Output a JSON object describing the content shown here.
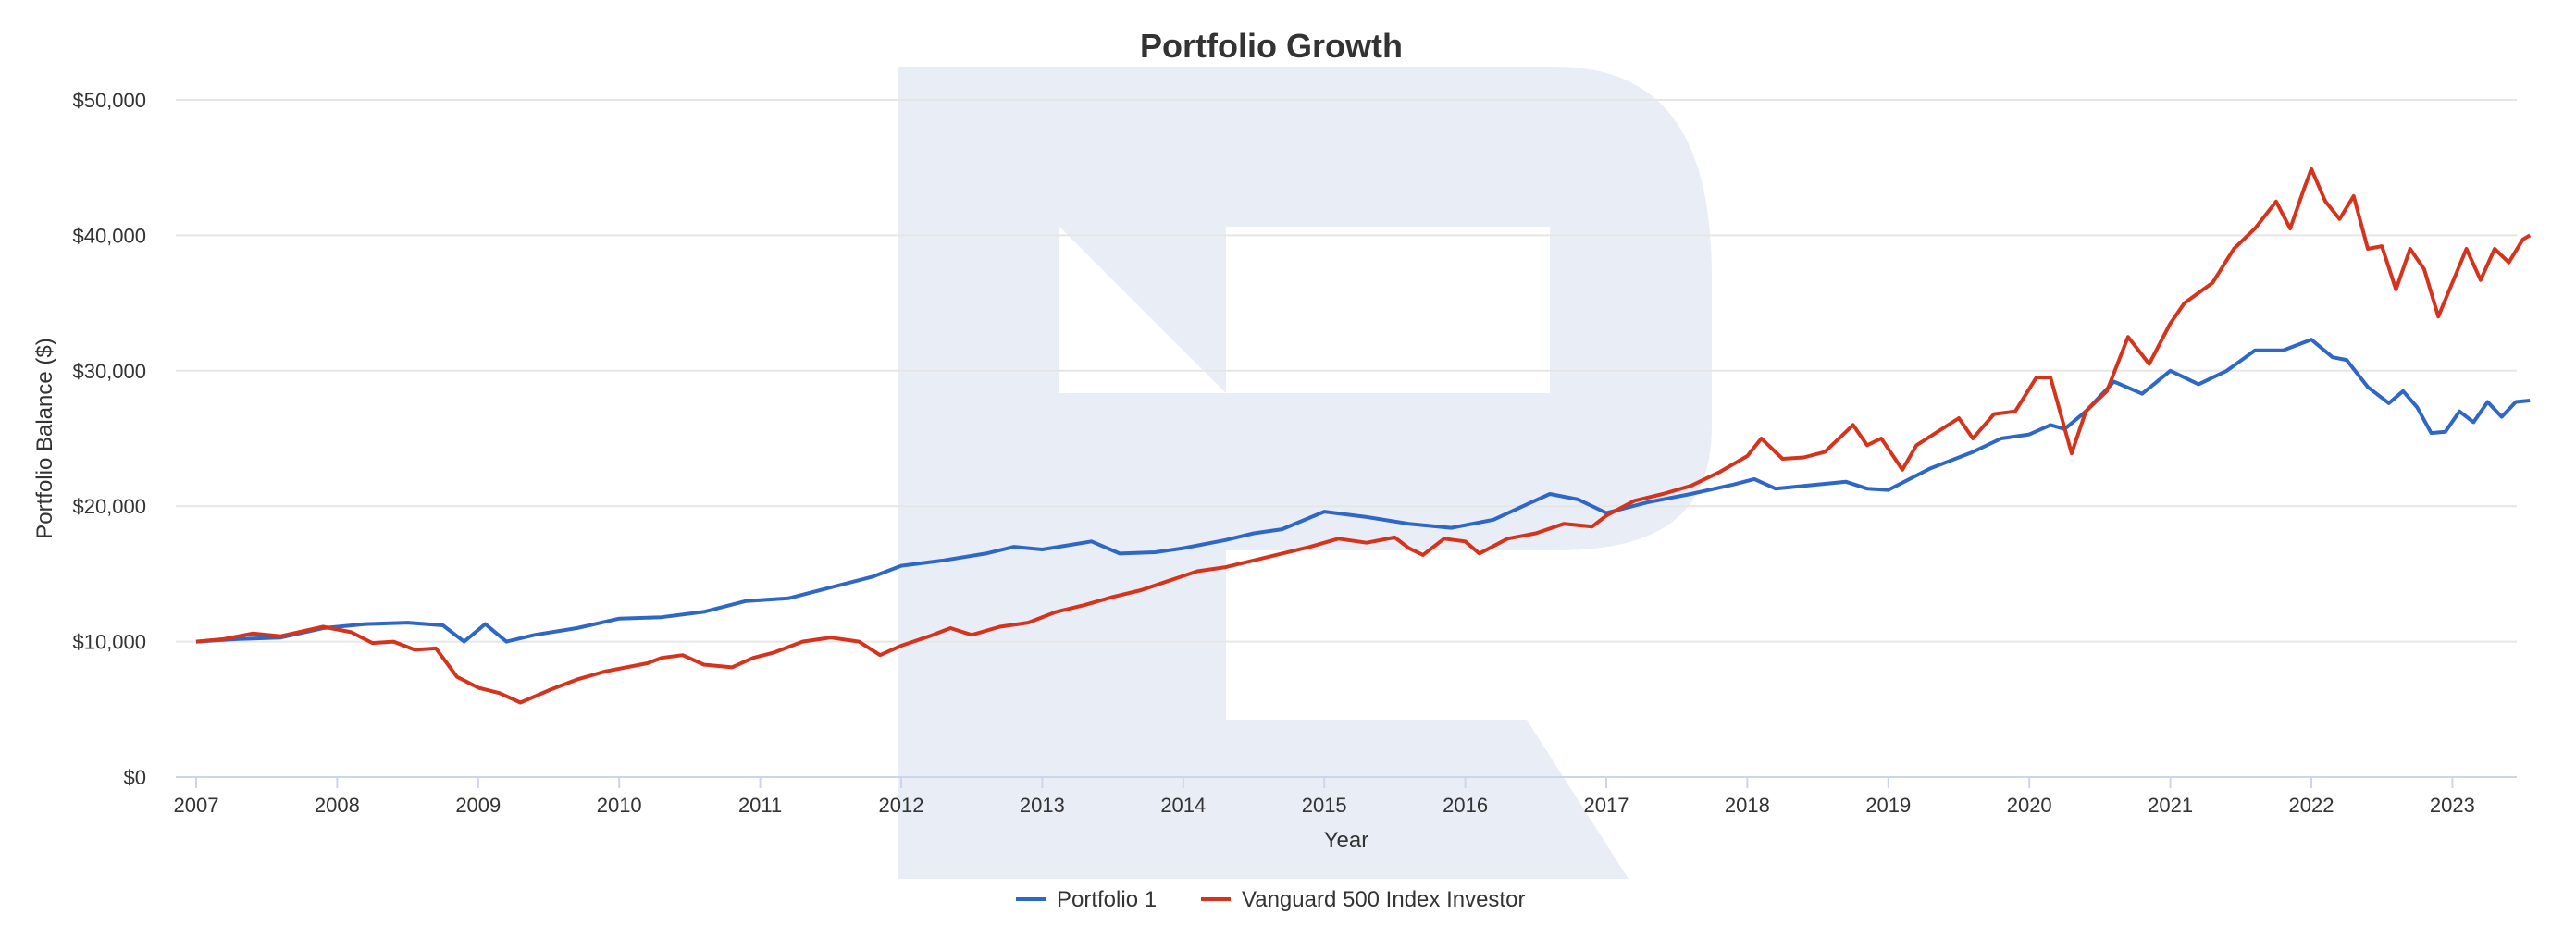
{
  "chart_data": {
    "type": "line",
    "title": "Portfolio Growth",
    "xlabel": "Year",
    "ylabel": "Portfolio Balance ($)",
    "xlim": [
      2007.0,
      2023.5
    ],
    "ylim": [
      0,
      50000
    ],
    "x_ticks": [
      "2007",
      "2008",
      "2009",
      "2010",
      "2011",
      "2012",
      "2013",
      "2014",
      "2015",
      "2016",
      "2017",
      "2018",
      "2019",
      "2020",
      "2021",
      "2022",
      "2023"
    ],
    "y_ticks": [
      {
        "value": 0,
        "label": "$0"
      },
      {
        "value": 10000,
        "label": "$10,000"
      },
      {
        "value": 20000,
        "label": "$20,000"
      },
      {
        "value": 30000,
        "label": "$30,000"
      },
      {
        "value": 40000,
        "label": "$40,000"
      },
      {
        "value": 50000,
        "label": "$50,000"
      }
    ],
    "grid": true,
    "legend_position": "bottom-center",
    "series": [
      {
        "name": "Portfolio 1",
        "color": "#2f67c7",
        "points": [
          [
            2007.0,
            10000
          ],
          [
            2007.3,
            10200
          ],
          [
            2007.6,
            10300
          ],
          [
            2007.9,
            11000
          ],
          [
            2008.2,
            11300
          ],
          [
            2008.5,
            11400
          ],
          [
            2008.75,
            11200
          ],
          [
            2008.9,
            10000
          ],
          [
            2009.05,
            11300
          ],
          [
            2009.2,
            10000
          ],
          [
            2009.4,
            10500
          ],
          [
            2009.7,
            11000
          ],
          [
            2010.0,
            11700
          ],
          [
            2010.3,
            11800
          ],
          [
            2010.6,
            12200
          ],
          [
            2010.9,
            13000
          ],
          [
            2011.2,
            13200
          ],
          [
            2011.5,
            14000
          ],
          [
            2011.8,
            14800
          ],
          [
            2012.0,
            15600
          ],
          [
            2012.3,
            16000
          ],
          [
            2012.6,
            16500
          ],
          [
            2012.8,
            17000
          ],
          [
            2013.0,
            16800
          ],
          [
            2013.35,
            17400
          ],
          [
            2013.55,
            16500
          ],
          [
            2013.8,
            16600
          ],
          [
            2014.0,
            16900
          ],
          [
            2014.3,
            17500
          ],
          [
            2014.5,
            18000
          ],
          [
            2014.7,
            18300
          ],
          [
            2015.0,
            19600
          ],
          [
            2015.3,
            19200
          ],
          [
            2015.6,
            18700
          ],
          [
            2015.9,
            18400
          ],
          [
            2016.2,
            19000
          ],
          [
            2016.45,
            20200
          ],
          [
            2016.6,
            20900
          ],
          [
            2016.8,
            20500
          ],
          [
            2017.0,
            19500
          ],
          [
            2017.3,
            20300
          ],
          [
            2017.6,
            20900
          ],
          [
            2017.9,
            21600
          ],
          [
            2018.05,
            22000
          ],
          [
            2018.2,
            21300
          ],
          [
            2018.4,
            21500
          ],
          [
            2018.7,
            21800
          ],
          [
            2018.85,
            21300
          ],
          [
            2019.0,
            21200
          ],
          [
            2019.3,
            22800
          ],
          [
            2019.6,
            24000
          ],
          [
            2019.8,
            25000
          ],
          [
            2020.0,
            25300
          ],
          [
            2020.15,
            26000
          ],
          [
            2020.25,
            25700
          ],
          [
            2020.4,
            27000
          ],
          [
            2020.6,
            29200
          ],
          [
            2020.8,
            28300
          ],
          [
            2021.0,
            30000
          ],
          [
            2021.2,
            29000
          ],
          [
            2021.4,
            30000
          ],
          [
            2021.6,
            31500
          ],
          [
            2021.8,
            31500
          ],
          [
            2022.0,
            32300
          ],
          [
            2022.15,
            31000
          ],
          [
            2022.25,
            30800
          ],
          [
            2022.4,
            28800
          ],
          [
            2022.55,
            27600
          ],
          [
            2022.65,
            28500
          ],
          [
            2022.75,
            27300
          ],
          [
            2022.85,
            25400
          ],
          [
            2022.95,
            25500
          ],
          [
            2023.05,
            27000
          ],
          [
            2023.15,
            26200
          ],
          [
            2023.25,
            27700
          ],
          [
            2023.35,
            26600
          ],
          [
            2023.45,
            27700
          ],
          [
            2023.55,
            27800
          ]
        ]
      },
      {
        "name": "Vanguard 500 Index Investor",
        "color": "#d6331c",
        "points": [
          [
            2007.0,
            10000
          ],
          [
            2007.2,
            10200
          ],
          [
            2007.4,
            10600
          ],
          [
            2007.6,
            10400
          ],
          [
            2007.9,
            11100
          ],
          [
            2008.1,
            10700
          ],
          [
            2008.25,
            9900
          ],
          [
            2008.4,
            10000
          ],
          [
            2008.55,
            9400
          ],
          [
            2008.7,
            9500
          ],
          [
            2008.85,
            7400
          ],
          [
            2009.0,
            6600
          ],
          [
            2009.15,
            6200
          ],
          [
            2009.3,
            5500
          ],
          [
            2009.5,
            6400
          ],
          [
            2009.7,
            7200
          ],
          [
            2009.9,
            7800
          ],
          [
            2010.2,
            8400
          ],
          [
            2010.3,
            8800
          ],
          [
            2010.45,
            9000
          ],
          [
            2010.6,
            8300
          ],
          [
            2010.8,
            8100
          ],
          [
            2010.95,
            8800
          ],
          [
            2011.1,
            9200
          ],
          [
            2011.3,
            10000
          ],
          [
            2011.5,
            10300
          ],
          [
            2011.7,
            10000
          ],
          [
            2011.85,
            9000
          ],
          [
            2012.0,
            9700
          ],
          [
            2012.2,
            10400
          ],
          [
            2012.35,
            11000
          ],
          [
            2012.5,
            10500
          ],
          [
            2012.7,
            11100
          ],
          [
            2012.9,
            11400
          ],
          [
            2013.1,
            12200
          ],
          [
            2013.3,
            12700
          ],
          [
            2013.5,
            13300
          ],
          [
            2013.7,
            13800
          ],
          [
            2013.9,
            14500
          ],
          [
            2014.1,
            15200
          ],
          [
            2014.3,
            15500
          ],
          [
            2014.5,
            16000
          ],
          [
            2014.7,
            16500
          ],
          [
            2014.9,
            17000
          ],
          [
            2015.1,
            17600
          ],
          [
            2015.3,
            17300
          ],
          [
            2015.5,
            17700
          ],
          [
            2015.6,
            16900
          ],
          [
            2015.7,
            16400
          ],
          [
            2015.85,
            17600
          ],
          [
            2016.0,
            17400
          ],
          [
            2016.1,
            16500
          ],
          [
            2016.3,
            17600
          ],
          [
            2016.5,
            18000
          ],
          [
            2016.7,
            18700
          ],
          [
            2016.9,
            18500
          ],
          [
            2017.0,
            19300
          ],
          [
            2017.2,
            20400
          ],
          [
            2017.4,
            20900
          ],
          [
            2017.6,
            21500
          ],
          [
            2017.8,
            22500
          ],
          [
            2018.0,
            23700
          ],
          [
            2018.1,
            25000
          ],
          [
            2018.25,
            23500
          ],
          [
            2018.4,
            23600
          ],
          [
            2018.55,
            24000
          ],
          [
            2018.75,
            26000
          ],
          [
            2018.85,
            24500
          ],
          [
            2018.95,
            25000
          ],
          [
            2019.1,
            22700
          ],
          [
            2019.2,
            24500
          ],
          [
            2019.35,
            25500
          ],
          [
            2019.5,
            26500
          ],
          [
            2019.6,
            25000
          ],
          [
            2019.75,
            26800
          ],
          [
            2019.9,
            27000
          ],
          [
            2020.05,
            29500
          ],
          [
            2020.15,
            29500
          ],
          [
            2020.3,
            23900
          ],
          [
            2020.4,
            27000
          ],
          [
            2020.55,
            28500
          ],
          [
            2020.7,
            32500
          ],
          [
            2020.85,
            30500
          ],
          [
            2021.0,
            33500
          ],
          [
            2021.1,
            35000
          ],
          [
            2021.3,
            36500
          ],
          [
            2021.45,
            39000
          ],
          [
            2021.6,
            40500
          ],
          [
            2021.75,
            42500
          ],
          [
            2021.85,
            40500
          ],
          [
            2021.95,
            43500
          ],
          [
            2022.0,
            44900
          ],
          [
            2022.1,
            42500
          ],
          [
            2022.2,
            41200
          ],
          [
            2022.3,
            42900
          ],
          [
            2022.4,
            39000
          ],
          [
            2022.5,
            39200
          ],
          [
            2022.6,
            36000
          ],
          [
            2022.7,
            39000
          ],
          [
            2022.8,
            37500
          ],
          [
            2022.9,
            34000
          ],
          [
            2023.0,
            36500
          ],
          [
            2023.1,
            39000
          ],
          [
            2023.2,
            36700
          ],
          [
            2023.3,
            39000
          ],
          [
            2023.4,
            38000
          ],
          [
            2023.5,
            39700
          ],
          [
            2023.55,
            40000
          ]
        ]
      }
    ]
  }
}
